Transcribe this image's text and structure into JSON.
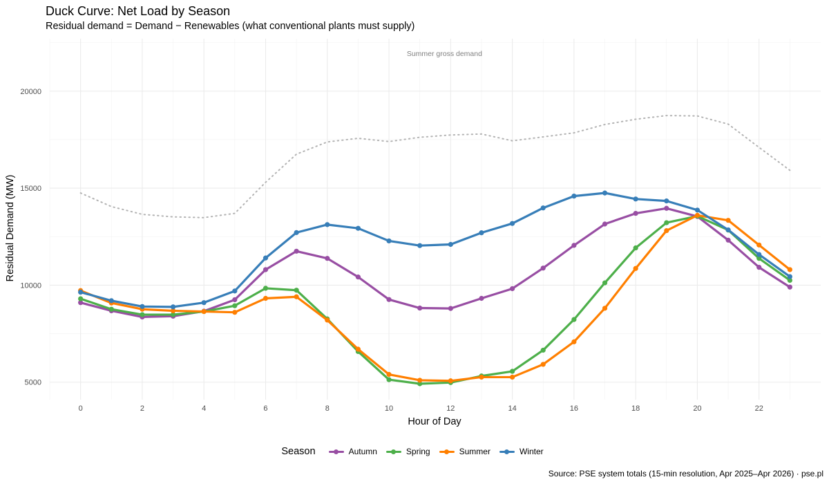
{
  "header": {
    "title": "Duck Curve: Net Load by Season",
    "subtitle": "Residual demand = Demand − Renewables (what conventional plants must supply)"
  },
  "footer": {
    "caption": "Source: PSE system totals (15-min resolution, Apr 2025–Apr 2026) · pse.pl"
  },
  "legend": {
    "title": "Season",
    "items": [
      {
        "label": "Autumn",
        "color": "#984ea3"
      },
      {
        "label": "Spring",
        "color": "#4daf4a"
      },
      {
        "label": "Summer",
        "color": "#ff7f00"
      },
      {
        "label": "Winter",
        "color": "#377eb8"
      }
    ]
  },
  "chart_data": {
    "type": "line",
    "xlabel": "Hour of Day",
    "ylabel": "Residual Demand (MW)",
    "xlim": [
      -1,
      24
    ],
    "ylim": [
      4100,
      22700
    ],
    "x_ticks": [
      "0",
      "2",
      "4",
      "6",
      "8",
      "10",
      "12",
      "14",
      "16",
      "18",
      "20",
      "22"
    ],
    "x_tick_values": [
      0,
      2,
      4,
      6,
      8,
      10,
      12,
      14,
      16,
      18,
      20,
      22
    ],
    "y_ticks": [
      "5000",
      "10000",
      "15000",
      "20000"
    ],
    "y_tick_values": [
      5000,
      10000,
      15000,
      20000
    ],
    "grid": true,
    "legend_position": "bottom",
    "x": [
      0,
      1,
      2,
      3,
      4,
      5,
      6,
      7,
      8,
      9,
      10,
      11,
      12,
      13,
      14,
      15,
      16,
      17,
      18,
      19,
      20,
      21,
      22,
      23
    ],
    "series": [
      {
        "name": "Autumn",
        "color": "#984ea3",
        "values": [
          9100,
          8680,
          8360,
          8400,
          8660,
          9250,
          10800,
          11750,
          11380,
          10420,
          9260,
          8820,
          8800,
          9320,
          9820,
          10880,
          12050,
          13150,
          13700,
          13960,
          13540,
          12320,
          10920,
          9900
        ]
      },
      {
        "name": "Spring",
        "color": "#4daf4a",
        "values": [
          9300,
          8760,
          8480,
          8480,
          8640,
          8940,
          9840,
          9740,
          8260,
          6580,
          5130,
          4920,
          4980,
          5320,
          5560,
          6650,
          8230,
          10120,
          11920,
          13220,
          13560,
          12840,
          11380,
          10250
        ]
      },
      {
        "name": "Summer",
        "color": "#ff7f00",
        "values": [
          9720,
          9080,
          8760,
          8680,
          8640,
          8600,
          9320,
          9400,
          8200,
          6700,
          5400,
          5100,
          5070,
          5260,
          5260,
          5920,
          7080,
          8810,
          10860,
          12810,
          13600,
          13340,
          12070,
          10800
        ]
      },
      {
        "name": "Winter",
        "color": "#377eb8",
        "values": [
          9640,
          9200,
          8900,
          8880,
          9100,
          9700,
          11400,
          12710,
          13120,
          12930,
          12280,
          12040,
          12100,
          12700,
          13180,
          13980,
          14590,
          14750,
          14440,
          14340,
          13870,
          12850,
          11580,
          10440
        ]
      }
    ],
    "reference_line": {
      "label": "Summer gross demand",
      "style": "dotted",
      "color": "#b3b3b3",
      "values": [
        14750,
        14050,
        13650,
        13520,
        13480,
        13700,
        15300,
        16750,
        17380,
        17570,
        17400,
        17620,
        17740,
        17790,
        17440,
        17640,
        17850,
        18280,
        18550,
        18740,
        18720,
        18300,
        17100,
        15920
      ]
    }
  }
}
